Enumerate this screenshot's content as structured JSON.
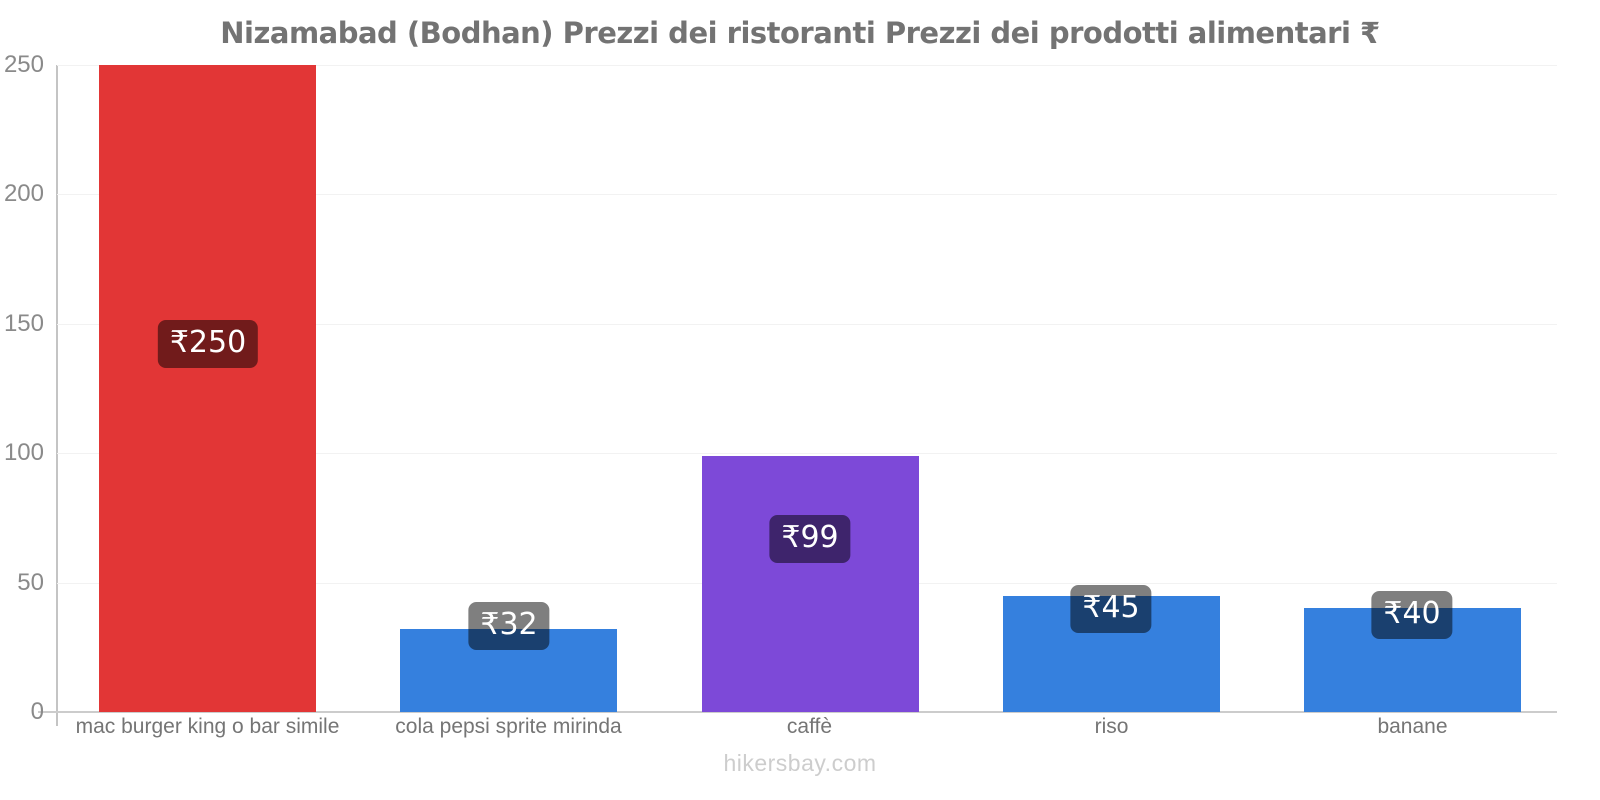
{
  "title": "Nizamabad (Bodhan) Prezzi dei ristoranti Prezzi dei prodotti alimentari ₹",
  "footer": "hikersbay.com",
  "chart_data": {
    "type": "bar",
    "title": "Nizamabad (Bodhan) Prezzi dei ristoranti Prezzi dei prodotti alimentari ₹",
    "categories": [
      "mac burger king o bar simile",
      "cola pepsi sprite mirinda",
      "caffè",
      "riso",
      "banane"
    ],
    "values": [
      250,
      32,
      99,
      45,
      40
    ],
    "value_labels": [
      "₹250",
      "₹32",
      "₹99",
      "₹45",
      "₹40"
    ],
    "bar_colors": [
      "#e23636",
      "#3580de",
      "#7d49d8",
      "#3580de",
      "#3580de"
    ],
    "badge_color": "rgba(0,0,0,0.5)",
    "currency": "₹",
    "xlabel": "",
    "ylabel": "",
    "ylim": [
      0,
      250
    ],
    "y_ticks": [
      0,
      50,
      100,
      150,
      200,
      250
    ],
    "grid": "faint-horizontal",
    "legend": "none",
    "watermark": "hikersbay.com"
  }
}
